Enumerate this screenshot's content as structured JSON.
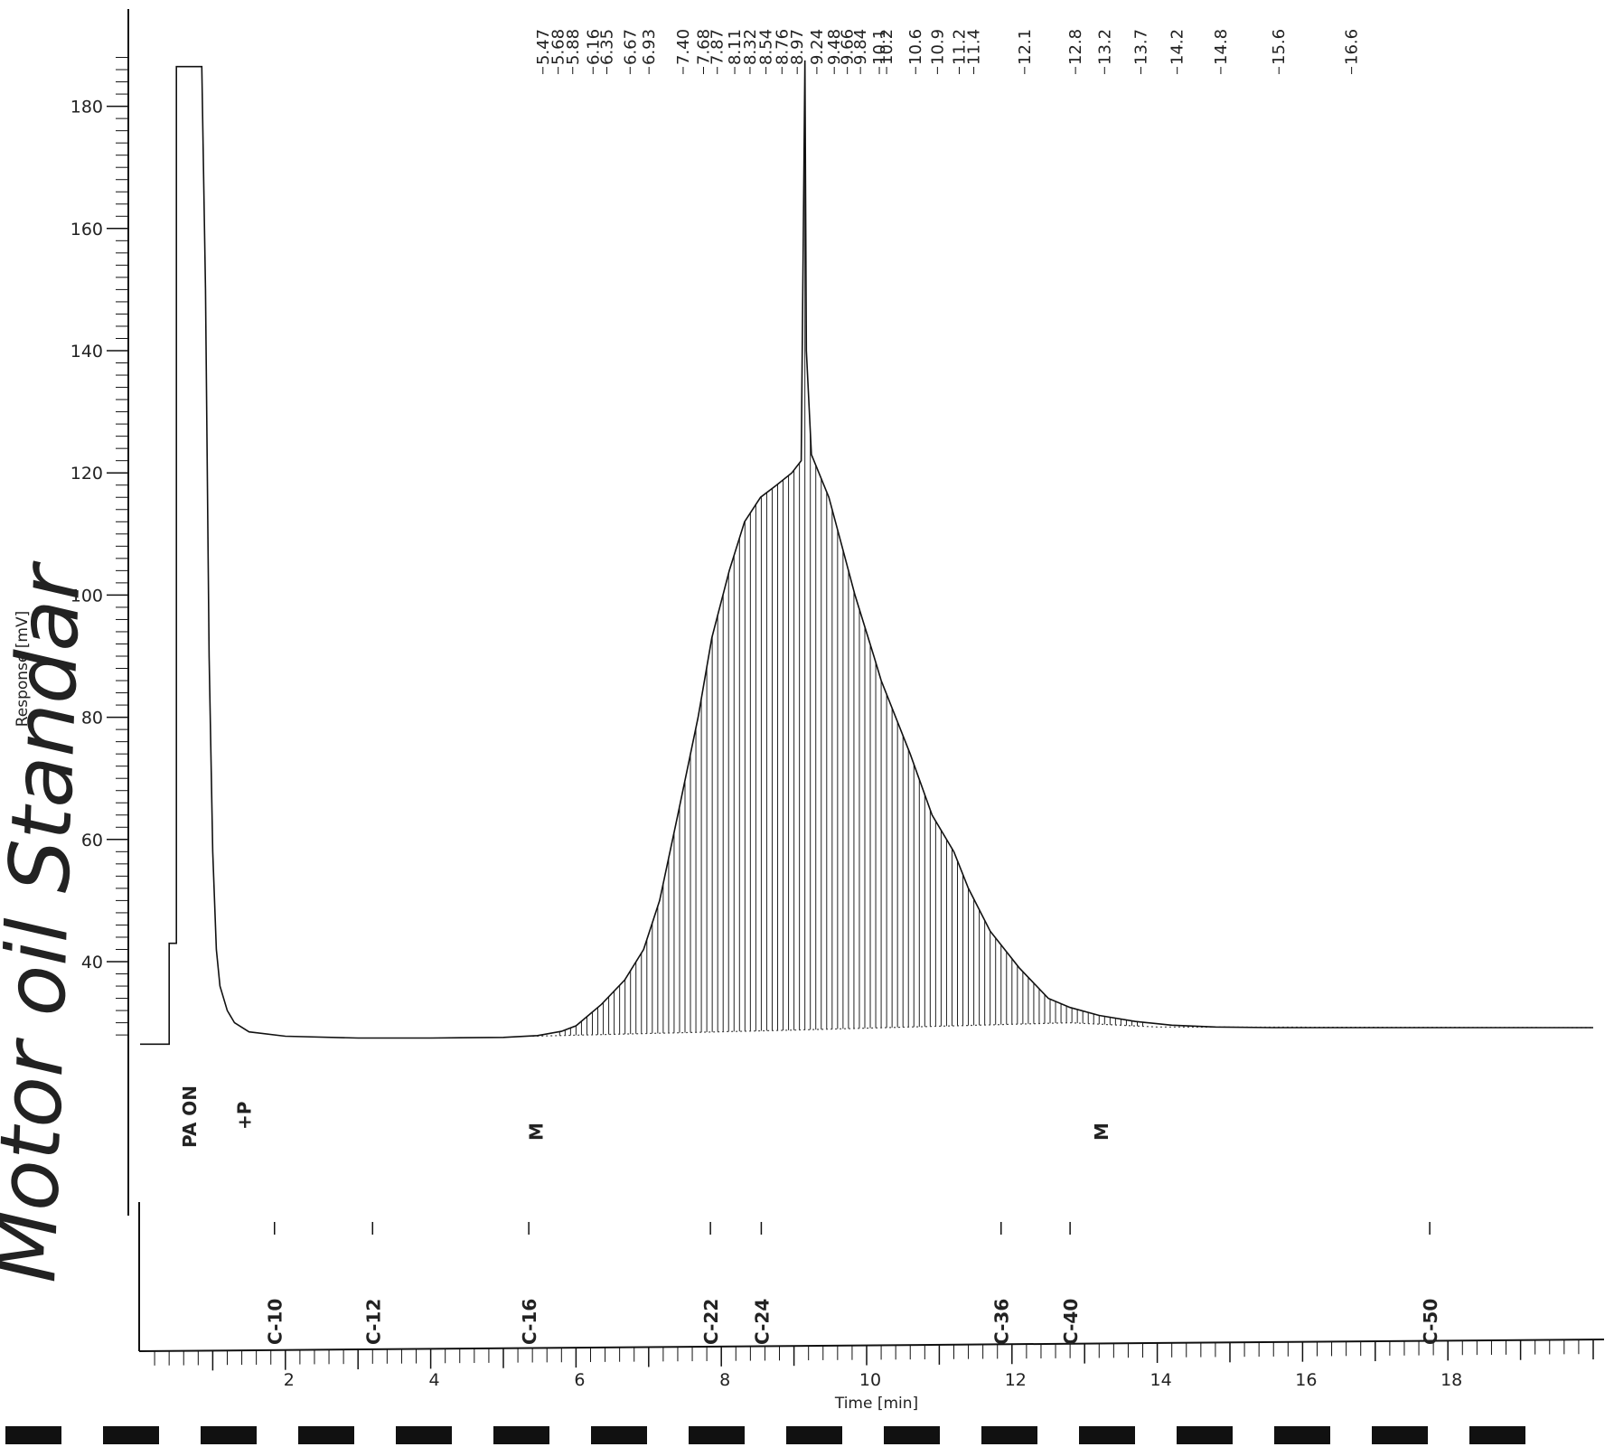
{
  "chart_data": {
    "type": "line",
    "title": "",
    "xlabel": "Time [min]",
    "ylabel": "Response [mV]",
    "xlim": [
      0,
      20
    ],
    "ylim": [
      25,
      190
    ],
    "x_ticks": [
      "2",
      "4",
      "6",
      "8",
      "10",
      "12",
      "14",
      "16",
      "18"
    ],
    "y_ticks": [
      "40",
      "60",
      "80",
      "100",
      "120",
      "140",
      "160",
      "180"
    ],
    "grid": false,
    "legend": "none",
    "series": [
      {
        "x": [
          0,
          0.4,
          0.4,
          0.5,
          0.5,
          0.85,
          0.9,
          0.95,
          1.0,
          1.05,
          1.1,
          1.2,
          1.3,
          1.5,
          2.0,
          3.0,
          4.0,
          5.0,
          5.47,
          5.8,
          6.0,
          6.35,
          6.67,
          6.93,
          7.15,
          7.4,
          7.68,
          7.87,
          8.11,
          8.32,
          8.54,
          8.76,
          8.97,
          9.1,
          9.15,
          9.17,
          9.24,
          9.48,
          9.66,
          9.84,
          10.1,
          10.2,
          10.6,
          10.9,
          11.2,
          11.4,
          11.7,
          12.1,
          12.5,
          12.8,
          13.2,
          13.7,
          14.2,
          14.8,
          15.6,
          16.6,
          18.0,
          20.0
        ],
        "y": [
          26.5,
          26.5,
          43,
          43,
          186.5,
          186.5,
          150,
          90,
          58,
          42,
          36,
          32,
          30,
          28.5,
          27.8,
          27.5,
          27.5,
          27.6,
          27.9,
          28.6,
          29.5,
          33,
          37,
          42,
          50,
          64,
          80,
          93,
          104,
          112,
          116,
          118,
          120,
          122,
          187.5,
          140,
          123,
          116,
          108,
          100,
          90,
          86,
          74,
          64,
          58,
          52,
          45,
          39,
          34,
          32.5,
          31.2,
          30.2,
          29.6,
          29.3,
          29.2,
          29.2,
          29.2,
          29.2
        ]
      }
    ],
    "peak_labels": [
      "5.47",
      "5.68",
      "5.88",
      "6.16",
      "6.35",
      "6.67",
      "6.93",
      "7.40",
      "7.68",
      "7.87",
      "8.11",
      "8.32",
      "8.54",
      "8.76",
      "8.97",
      "9.24",
      "9.48",
      "9.66",
      "9.84",
      "10.1",
      "10.2",
      "10.6",
      "10.9",
      "11.2",
      "11.4",
      "12.1",
      "12.8",
      "13.2",
      "13.7",
      "14.2",
      "14.8",
      "15.6",
      "16.6"
    ],
    "carbon_markers": [
      {
        "label": "C-10",
        "x": 1.85
      },
      {
        "label": "C-12",
        "x": 3.2
      },
      {
        "label": "C-16",
        "x": 5.35
      },
      {
        "label": "C-22",
        "x": 7.85
      },
      {
        "label": "C-24",
        "x": 8.55
      },
      {
        "label": "C-36",
        "x": 11.85
      },
      {
        "label": "C-40",
        "x": 12.8
      },
      {
        "label": "C-50",
        "x": 17.75
      }
    ],
    "annotations": [
      {
        "text": "PA ON",
        "x": 0.5
      },
      {
        "text": "+P",
        "x": 1.25
      },
      {
        "text": "M",
        "x": 5.27
      },
      {
        "text": "M",
        "x": 13.05
      }
    ],
    "handwritten_note": "Motor oil Standar"
  }
}
